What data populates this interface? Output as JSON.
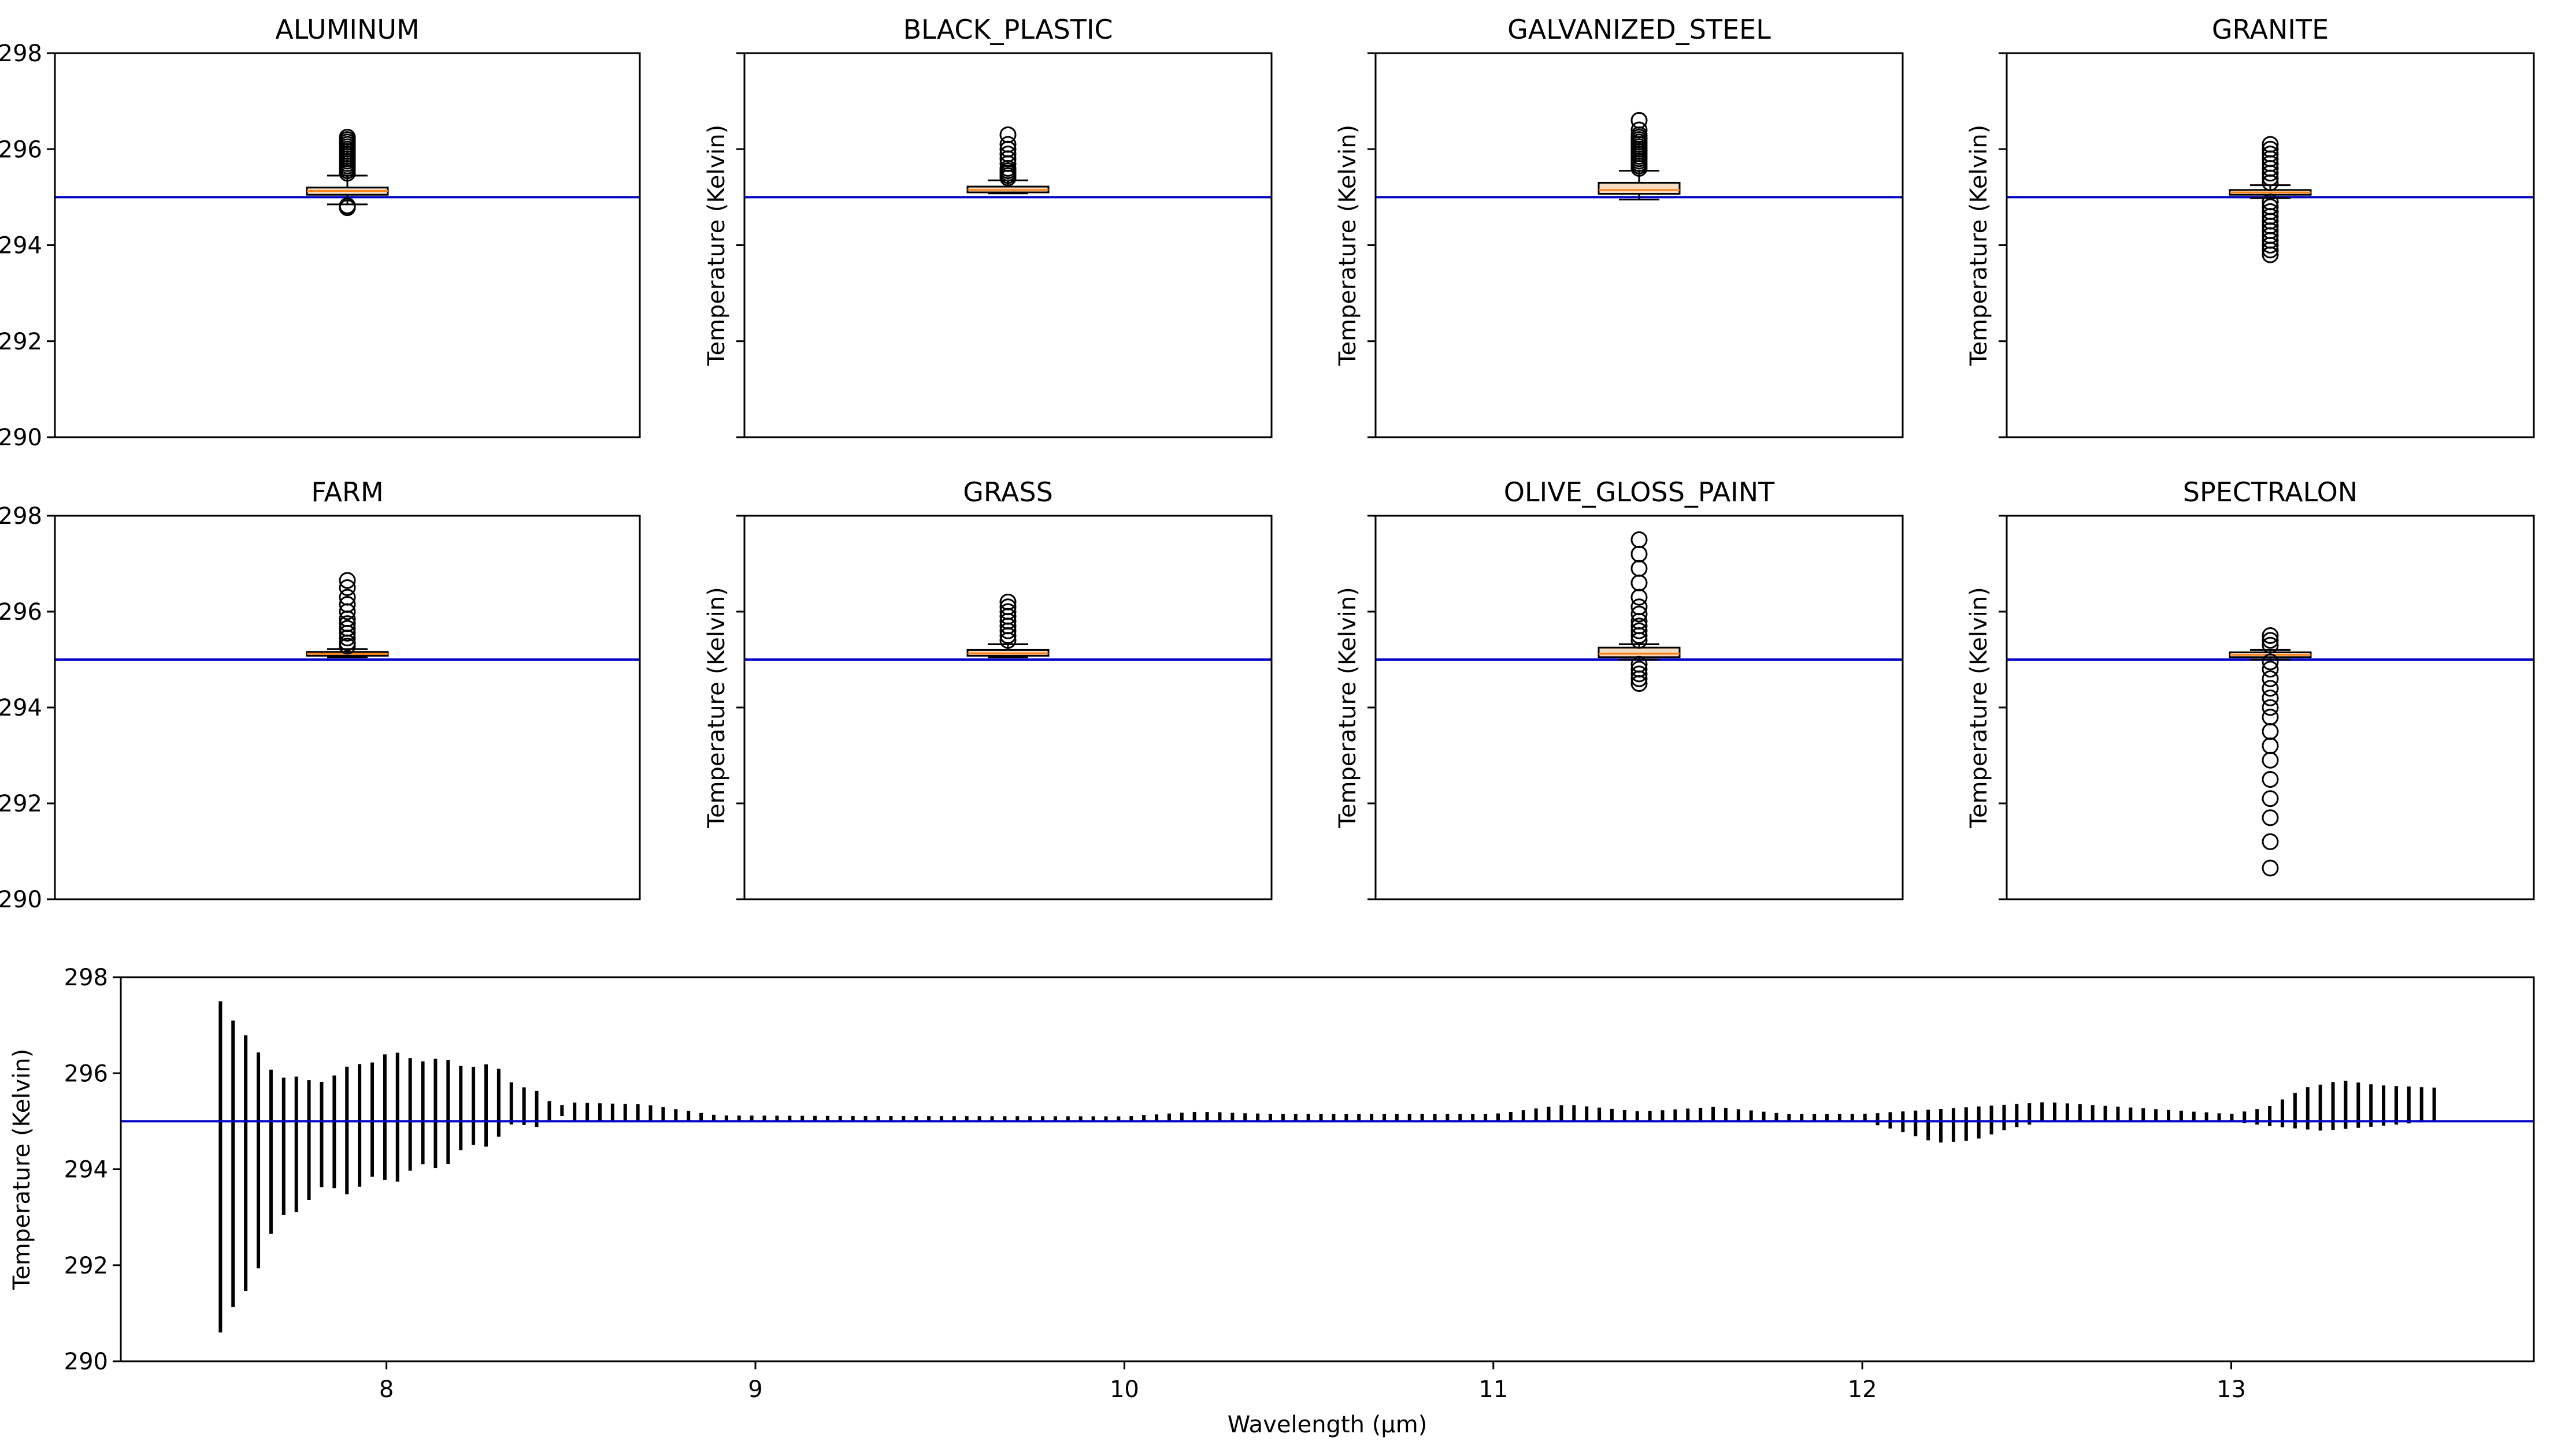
{
  "figure": {
    "ylabel": "Temperature (Kelvin)",
    "reference_line": {
      "value": 295,
      "color": "#0000c8"
    },
    "box_fill": "#f5dcc0",
    "median_color": "#ff7f0e"
  },
  "chart_data": [
    {
      "type": "box",
      "title": "ALUMINUM",
      "ylabel": "Temperature (Kelvin)",
      "ylim": [
        290,
        298
      ],
      "yticks": [
        290,
        292,
        294,
        296,
        298
      ],
      "ytick_labels_visible": true,
      "box": {
        "whisker_low": 294.85,
        "q1": 295.05,
        "median": 295.13,
        "q3": 295.2,
        "whisker_high": 295.45
      },
      "outliers": [
        294.78,
        294.82,
        295.5,
        295.55,
        295.6,
        295.65,
        295.7,
        295.75,
        295.8,
        295.85,
        295.9,
        295.95,
        296.0,
        296.05,
        296.1,
        296.15,
        296.2,
        296.25
      ]
    },
    {
      "type": "box",
      "title": "BLACK_PLASTIC",
      "ylabel": "Temperature (Kelvin)",
      "ylim": [
        290,
        298
      ],
      "yticks": [
        290,
        292,
        294,
        296,
        298
      ],
      "ytick_labels_visible": false,
      "box": {
        "whisker_low": 295.08,
        "q1": 295.1,
        "median": 295.15,
        "q3": 295.22,
        "whisker_high": 295.35
      },
      "outliers": [
        295.4,
        295.45,
        295.5,
        295.55,
        295.6,
        295.7,
        295.8,
        295.9,
        296.0,
        296.1,
        296.3
      ]
    },
    {
      "type": "box",
      "title": "GALVANIZED_STEEL",
      "ylabel": "Temperature (Kelvin)",
      "ylim": [
        290,
        298
      ],
      "yticks": [
        290,
        292,
        294,
        296,
        298
      ],
      "ytick_labels_visible": false,
      "box": {
        "whisker_low": 294.95,
        "q1": 295.07,
        "median": 295.15,
        "q3": 295.3,
        "whisker_high": 295.55
      },
      "outliers": [
        295.6,
        295.65,
        295.7,
        295.75,
        295.8,
        295.85,
        295.9,
        295.95,
        296.0,
        296.05,
        296.1,
        296.15,
        296.2,
        296.25,
        296.3,
        296.4,
        296.6
      ]
    },
    {
      "type": "box",
      "title": "GRANITE",
      "ylabel": "Temperature (Kelvin)",
      "ylim": [
        290,
        298
      ],
      "yticks": [
        290,
        292,
        294,
        296,
        298
      ],
      "ytick_labels_visible": false,
      "box": {
        "whisker_low": 294.98,
        "q1": 295.05,
        "median": 295.1,
        "q3": 295.15,
        "whisker_high": 295.25
      },
      "outliers": [
        293.8,
        293.9,
        294.0,
        294.1,
        294.2,
        294.3,
        294.4,
        294.5,
        294.6,
        294.7,
        294.8,
        294.9,
        295.3,
        295.4,
        295.5,
        295.6,
        295.7,
        295.8,
        295.9,
        296.0,
        296.1
      ]
    },
    {
      "type": "box",
      "title": "FARM",
      "ylabel": "Temperature (Kelvin)",
      "ylim": [
        290,
        298
      ],
      "yticks": [
        290,
        292,
        294,
        296,
        298
      ],
      "ytick_labels_visible": true,
      "box": {
        "whisker_low": 295.05,
        "q1": 295.08,
        "median": 295.12,
        "q3": 295.16,
        "whisker_high": 295.22
      },
      "outliers": [
        295.28,
        295.35,
        295.45,
        295.55,
        295.65,
        295.75,
        295.85,
        296.0,
        296.15,
        296.3,
        296.5,
        296.65
      ]
    },
    {
      "type": "box",
      "title": "GRASS",
      "ylabel": "Temperature (Kelvin)",
      "ylim": [
        290,
        298
      ],
      "yticks": [
        290,
        292,
        294,
        296,
        298
      ],
      "ytick_labels_visible": false,
      "box": {
        "whisker_low": 295.05,
        "q1": 295.08,
        "median": 295.13,
        "q3": 295.2,
        "whisker_high": 295.32
      },
      "outliers": [
        295.4,
        295.5,
        295.6,
        295.7,
        295.8,
        295.9,
        296.0,
        296.1,
        296.2
      ]
    },
    {
      "type": "box",
      "title": "OLIVE_GLOSS_PAINT",
      "ylabel": "Temperature (Kelvin)",
      "ylim": [
        290,
        298
      ],
      "yticks": [
        290,
        292,
        294,
        296,
        298
      ],
      "ytick_labels_visible": false,
      "box": {
        "whisker_low": 295.0,
        "q1": 295.05,
        "median": 295.12,
        "q3": 295.25,
        "whisker_high": 295.32
      },
      "outliers": [
        294.5,
        294.6,
        294.7,
        294.8,
        294.9,
        295.4,
        295.5,
        295.6,
        295.7,
        295.8,
        295.95,
        296.1,
        296.3,
        296.6,
        296.9,
        297.2,
        297.5
      ]
    },
    {
      "type": "box",
      "title": "SPECTRALON",
      "ylabel": "Temperature (Kelvin)",
      "ylim": [
        290,
        298
      ],
      "yticks": [
        290,
        292,
        294,
        296,
        298
      ],
      "ytick_labels_visible": false,
      "box": {
        "whisker_low": 295.0,
        "q1": 295.05,
        "median": 295.1,
        "q3": 295.15,
        "whisker_high": 295.2
      },
      "outliers": [
        290.65,
        291.2,
        291.7,
        292.1,
        292.5,
        292.9,
        293.2,
        293.5,
        293.8,
        294.0,
        294.2,
        294.4,
        294.6,
        294.8,
        294.95,
        295.3,
        295.4,
        295.5
      ]
    },
    {
      "type": "range",
      "title": "",
      "xlabel": "Wavelength (μm)",
      "ylabel": "Temperature (Kelvin)",
      "ylim": [
        290,
        298
      ],
      "yticks": [
        290,
        292,
        294,
        296,
        298
      ],
      "xlim": [
        7.28,
        13.82
      ],
      "xticks": [
        8,
        9,
        10,
        11,
        12,
        13
      ],
      "x_range": [
        7.55,
        13.55
      ],
      "bar_count": 176,
      "envelope_note": "vertical min-max bars per wavelength band",
      "low_profile": [
        [
          7.55,
          290.6
        ],
        [
          7.6,
          291.2
        ],
        [
          7.7,
          292.8
        ],
        [
          7.8,
          293.5
        ],
        [
          7.9,
          293.6
        ],
        [
          8.0,
          293.8
        ],
        [
          8.1,
          294.0
        ],
        [
          8.2,
          294.3
        ],
        [
          8.3,
          294.7
        ],
        [
          8.4,
          295.0
        ],
        [
          12.0,
          295.0
        ],
        [
          12.1,
          294.8
        ],
        [
          12.2,
          294.55
        ],
        [
          12.3,
          294.6
        ],
        [
          12.4,
          294.85
        ],
        [
          12.5,
          295.0
        ],
        [
          13.0,
          295.0
        ],
        [
          13.1,
          294.9
        ],
        [
          13.25,
          294.8
        ],
        [
          13.4,
          294.9
        ],
        [
          13.55,
          295.0
        ]
      ],
      "high_profile": [
        [
          7.55,
          297.5
        ],
        [
          7.6,
          297.0
        ],
        [
          7.65,
          296.4
        ],
        [
          7.7,
          296.0
        ],
        [
          7.8,
          295.8
        ],
        [
          7.9,
          296.1
        ],
        [
          8.0,
          296.4
        ],
        [
          8.1,
          296.3
        ],
        [
          8.2,
          296.2
        ],
        [
          8.3,
          296.1
        ],
        [
          8.35,
          295.8
        ],
        [
          8.45,
          295.4
        ],
        [
          8.7,
          295.35
        ],
        [
          8.9,
          295.12
        ],
        [
          10.0,
          295.1
        ],
        [
          10.2,
          295.2
        ],
        [
          10.4,
          295.15
        ],
        [
          11.0,
          295.15
        ],
        [
          11.2,
          295.35
        ],
        [
          11.4,
          295.2
        ],
        [
          11.6,
          295.3
        ],
        [
          11.8,
          295.15
        ],
        [
          12.0,
          295.15
        ],
        [
          12.3,
          295.3
        ],
        [
          12.5,
          295.4
        ],
        [
          12.7,
          295.3
        ],
        [
          13.0,
          295.15
        ],
        [
          13.1,
          295.3
        ],
        [
          13.2,
          295.7
        ],
        [
          13.3,
          295.85
        ],
        [
          13.4,
          295.75
        ],
        [
          13.55,
          295.7
        ]
      ]
    }
  ]
}
